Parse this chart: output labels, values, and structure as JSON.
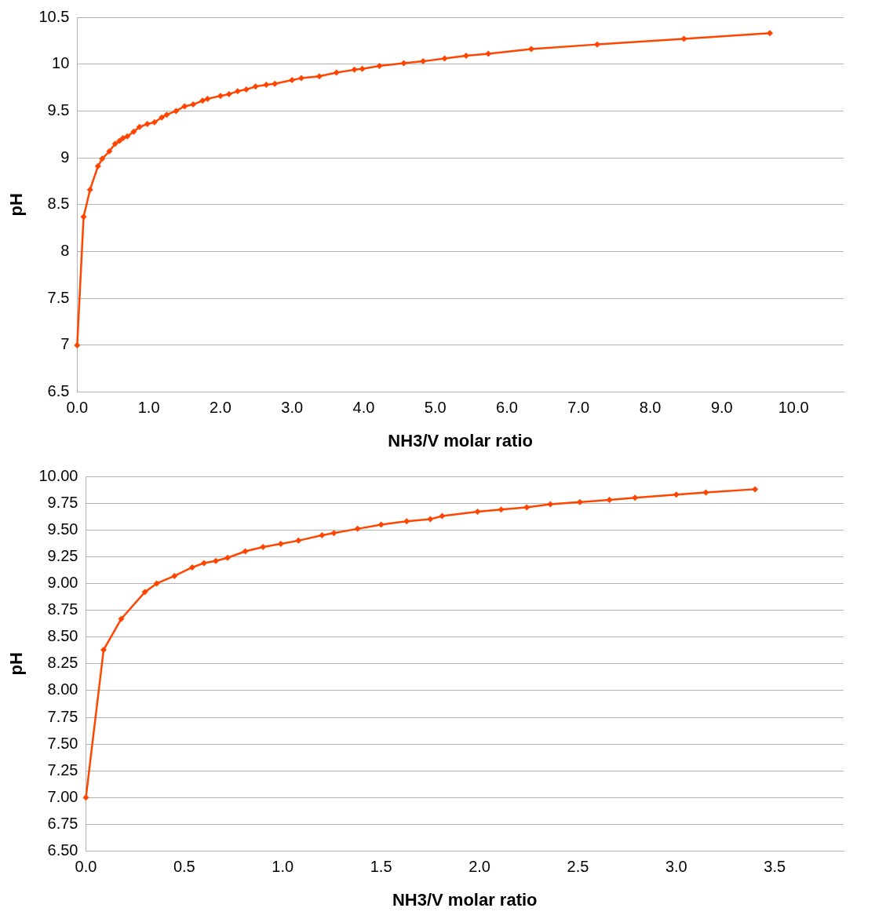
{
  "chart_data": [
    {
      "type": "line",
      "xlabel": "NH3/V molar ratio",
      "ylabel": "pH",
      "xlim": [
        0,
        10.7
      ],
      "xticks": [
        {
          "value": 0,
          "label": "0.0"
        },
        {
          "value": 1,
          "label": "1.0"
        },
        {
          "value": 2,
          "label": "2.0"
        },
        {
          "value": 3,
          "label": "3.0"
        },
        {
          "value": 4,
          "label": "4.0"
        },
        {
          "value": 5,
          "label": "5.0"
        },
        {
          "value": 6,
          "label": "6.0"
        },
        {
          "value": 7,
          "label": "7.0"
        },
        {
          "value": 8,
          "label": "8.0"
        },
        {
          "value": 9,
          "label": "9.0"
        },
        {
          "value": 10,
          "label": "10.0"
        }
      ],
      "ylim": [
        6.5,
        10.5
      ],
      "yticks": [
        6.5,
        7,
        7.5,
        8,
        8.5,
        9,
        9.5,
        10,
        10.5
      ],
      "grid": "y",
      "marker": "diamond",
      "line_style": "solid",
      "series": [
        {
          "color": "#ff4500",
          "x": [
            0,
            0.09,
            0.18,
            0.29,
            0.35,
            0.45,
            0.53,
            0.59,
            0.64,
            0.7,
            0.79,
            0.87,
            0.98,
            1.08,
            1.18,
            1.25,
            1.38,
            1.5,
            1.62,
            1.75,
            1.82,
            2,
            2.12,
            2.24,
            2.36,
            2.49,
            2.64,
            2.76,
            3,
            3.13,
            3.38,
            3.62,
            3.87,
            3.98,
            4.22,
            4.56,
            4.83,
            5.13,
            5.43,
            5.74,
            6.34,
            7.26,
            8.47,
            9.67
          ],
          "values": [
            7,
            8.37,
            8.66,
            8.91,
            8.99,
            9.07,
            9.15,
            9.18,
            9.21,
            9.23,
            9.28,
            9.33,
            9.36,
            9.38,
            9.43,
            9.46,
            9.5,
            9.55,
            9.57,
            9.61,
            9.63,
            9.66,
            9.68,
            9.71,
            9.73,
            9.76,
            9.78,
            9.79,
            9.83,
            9.85,
            9.87,
            9.91,
            9.94,
            9.95,
            9.98,
            10.01,
            10.03,
            10.06,
            10.09,
            10.11,
            10.16,
            10.21,
            10.27,
            10.33
          ]
        }
      ]
    },
    {
      "type": "line",
      "xlabel": "NH3/V molar ratio",
      "ylabel": "pH",
      "xlim": [
        0,
        3.85
      ],
      "xticks": [
        {
          "value": 0,
          "label": "0.0"
        },
        {
          "value": 0.5,
          "label": "0.5"
        },
        {
          "value": 1,
          "label": "1.0"
        },
        {
          "value": 1.5,
          "label": "1.5"
        },
        {
          "value": 2,
          "label": "2.0"
        },
        {
          "value": 2.5,
          "label": "2.5"
        },
        {
          "value": 3,
          "label": "3.0"
        },
        {
          "value": 3.5,
          "label": "3.5"
        }
      ],
      "ylim": [
        6.5,
        10
      ],
      "yticks": [
        {
          "value": 6.5,
          "label": "6.50"
        },
        {
          "value": 6.75,
          "label": "6.75"
        },
        {
          "value": 7,
          "label": "7.00"
        },
        {
          "value": 7.25,
          "label": "7.25"
        },
        {
          "value": 7.5,
          "label": "7.50"
        },
        {
          "value": 7.75,
          "label": "7.75"
        },
        {
          "value": 8,
          "label": "8.00"
        },
        {
          "value": 8.25,
          "label": "8.25"
        },
        {
          "value": 8.5,
          "label": "8.50"
        },
        {
          "value": 8.75,
          "label": "8.75"
        },
        {
          "value": 9,
          "label": "9.00"
        },
        {
          "value": 9.25,
          "label": "9.25"
        },
        {
          "value": 9.5,
          "label": "9.50"
        },
        {
          "value": 9.75,
          "label": "9.75"
        },
        {
          "value": 10,
          "label": "10.00"
        }
      ],
      "grid": "y",
      "marker": "diamond",
      "line_style": "solid",
      "series": [
        {
          "color": "#ff4500",
          "x": [
            0,
            0.09,
            0.18,
            0.3,
            0.36,
            0.45,
            0.54,
            0.6,
            0.66,
            0.72,
            0.81,
            0.9,
            0.99,
            1.08,
            1.2,
            1.26,
            1.38,
            1.5,
            1.63,
            1.75,
            1.81,
            1.99,
            2.11,
            2.24,
            2.36,
            2.51,
            2.66,
            2.79,
            3,
            3.15,
            3.4
          ],
          "values": [
            7,
            8.38,
            8.67,
            8.92,
            9,
            9.07,
            9.15,
            9.19,
            9.21,
            9.24,
            9.3,
            9.34,
            9.37,
            9.4,
            9.45,
            9.47,
            9.51,
            9.55,
            9.58,
            9.6,
            9.63,
            9.67,
            9.69,
            9.71,
            9.74,
            9.76,
            9.78,
            9.8,
            9.83,
            9.85,
            9.88
          ]
        }
      ]
    }
  ]
}
